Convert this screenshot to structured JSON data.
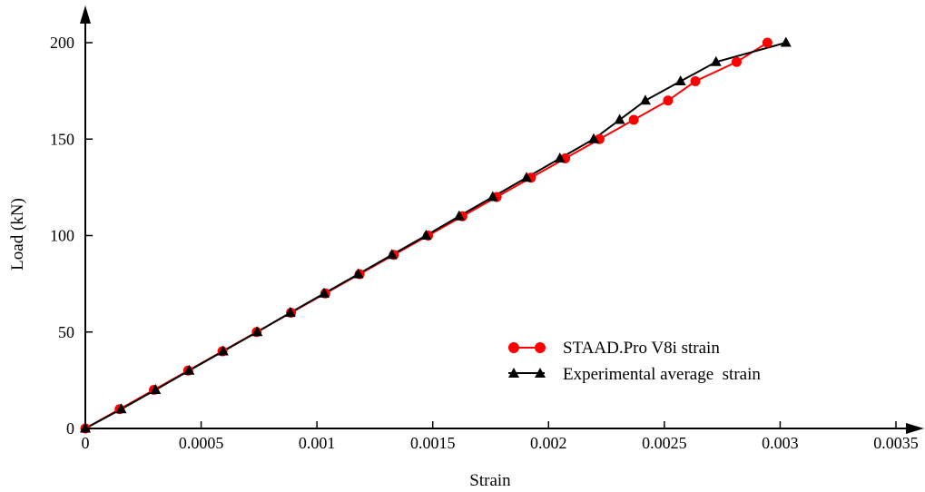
{
  "chart_data": {
    "type": "line",
    "title": "",
    "xlabel": "Strain",
    "ylabel": "Load (kN)",
    "xlim": [
      0,
      0.0035
    ],
    "ylim": [
      0,
      200
    ],
    "xticks": [
      "0",
      "0.0005",
      "0.001",
      "0.0015",
      "0.002",
      "0.0025",
      "0.003",
      "0.0035"
    ],
    "yticks": [
      "0",
      "50",
      "100",
      "150",
      "200"
    ],
    "grid": false,
    "legend_position": "lower-right",
    "series": [
      {
        "name": "STAAD.Pro V8i strain",
        "color": "#ff0000",
        "marker": "circle",
        "x": [
          0,
          0.000148,
          0.000296,
          0.000444,
          0.000592,
          0.00074,
          0.000888,
          0.001036,
          0.001184,
          0.001332,
          0.00148,
          0.001628,
          0.001776,
          0.001924,
          0.002072,
          0.00222,
          0.002368,
          0.002516,
          0.002634,
          0.002812,
          0.002945
        ],
        "y": [
          0,
          10,
          20,
          30,
          40,
          50,
          60,
          70,
          80,
          90,
          100,
          110,
          120,
          130,
          140,
          150,
          160,
          170,
          180,
          190,
          200
        ]
      },
      {
        "name": "Experimental average  strain",
        "color": "#000000",
        "marker": "triangle",
        "x": [
          0,
          0.000155,
          0.000303,
          0.000448,
          0.000595,
          0.000742,
          0.000885,
          0.001031,
          0.001178,
          0.001324,
          0.001471,
          0.001614,
          0.001759,
          0.001905,
          0.002049,
          0.002195,
          0.002307,
          0.002418,
          0.00257,
          0.002723,
          0.003025
        ],
        "y": [
          0,
          10,
          20,
          30,
          40,
          50,
          60,
          70,
          80,
          90,
          100,
          110,
          120,
          130,
          140,
          150,
          160,
          170,
          180,
          190,
          200
        ]
      }
    ]
  }
}
